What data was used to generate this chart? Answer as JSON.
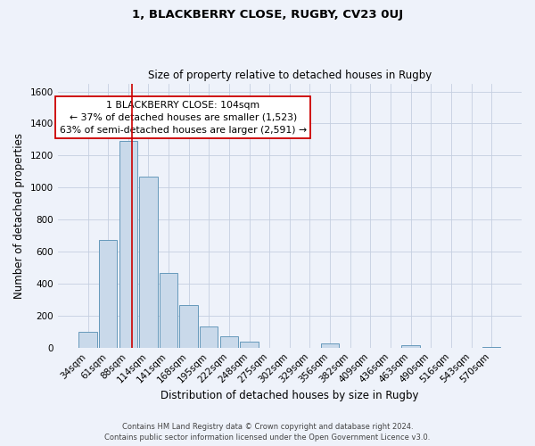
{
  "title1": "1, BLACKBERRY CLOSE, RUGBY, CV23 0UJ",
  "title2": "Size of property relative to detached houses in Rugby",
  "xlabel": "Distribution of detached houses by size in Rugby",
  "ylabel": "Number of detached properties",
  "bar_labels": [
    "34sqm",
    "61sqm",
    "88sqm",
    "114sqm",
    "141sqm",
    "168sqm",
    "195sqm",
    "222sqm",
    "248sqm",
    "275sqm",
    "302sqm",
    "329sqm",
    "356sqm",
    "382sqm",
    "409sqm",
    "436sqm",
    "463sqm",
    "490sqm",
    "516sqm",
    "543sqm",
    "570sqm"
  ],
  "bar_values": [
    100,
    675,
    1290,
    1070,
    465,
    265,
    130,
    70,
    35,
    0,
    0,
    0,
    25,
    0,
    0,
    0,
    15,
    0,
    0,
    0,
    5
  ],
  "bar_color": "#c9d9ea",
  "bar_edge_color": "#6699bb",
  "ylim": [
    0,
    1650
  ],
  "yticks": [
    0,
    200,
    400,
    600,
    800,
    1000,
    1200,
    1400,
    1600
  ],
  "property_line_x": 2.18,
  "property_line_color": "#cc0000",
  "annotation_title": "1 BLACKBERRY CLOSE: 104sqm",
  "annotation_line1": "← 37% of detached houses are smaller (1,523)",
  "annotation_line2": "63% of semi-detached houses are larger (2,591) →",
  "annotation_box_facecolor": "#ffffff",
  "annotation_box_edgecolor": "#cc0000",
  "footer1": "Contains HM Land Registry data © Crown copyright and database right 2024.",
  "footer2": "Contains public sector information licensed under the Open Government Licence v3.0.",
  "background_color": "#eef2fa",
  "grid_color": "#c5cfe0"
}
